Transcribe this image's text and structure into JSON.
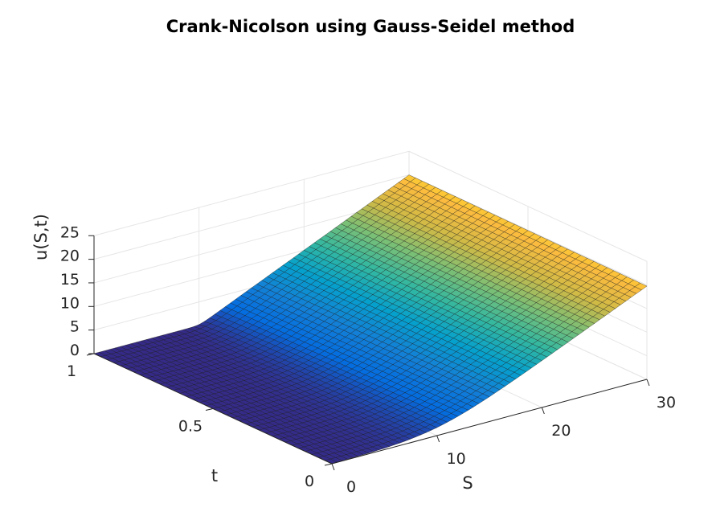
{
  "chart_data": {
    "type": "surface",
    "title": "Crank-Nicolson using Gauss-Seidel method",
    "xlabel": "S",
    "ylabel": "t",
    "zlabel": "u(S,t)",
    "xlim": [
      0,
      30
    ],
    "ylim": [
      0,
      1
    ],
    "zlim": [
      0,
      25
    ],
    "xticks": [
      "0",
      "10",
      "20",
      "30"
    ],
    "yticks": [
      "0",
      "0.5",
      "1"
    ],
    "zticks": [
      "0",
      "5",
      "10",
      "15",
      "20",
      "25"
    ],
    "grid": true,
    "colormap": "parula",
    "description_values": {
      "strike_K": 10,
      "S": [
        0,
        1.5,
        3,
        4.5,
        6,
        7.5,
        9,
        10.5,
        12,
        13.5,
        15,
        16.5,
        18,
        19.5,
        21,
        22.5,
        24,
        25.5,
        27,
        28.5,
        30
      ],
      "u_at_t0": [
        0,
        0,
        0,
        0.001,
        0.03,
        0.2,
        0.7,
        1.6,
        2.7,
        4.0,
        5.4,
        6.9,
        8.4,
        9.9,
        11.4,
        12.9,
        14.4,
        15.9,
        17.4,
        18.9,
        20.4
      ],
      "u_at_t1": [
        0,
        0,
        0,
        0,
        0,
        0,
        0,
        0.5,
        2,
        3.5,
        5,
        6.5,
        8,
        9.5,
        11,
        12.5,
        14,
        15.5,
        17,
        18.5,
        20
      ]
    }
  }
}
